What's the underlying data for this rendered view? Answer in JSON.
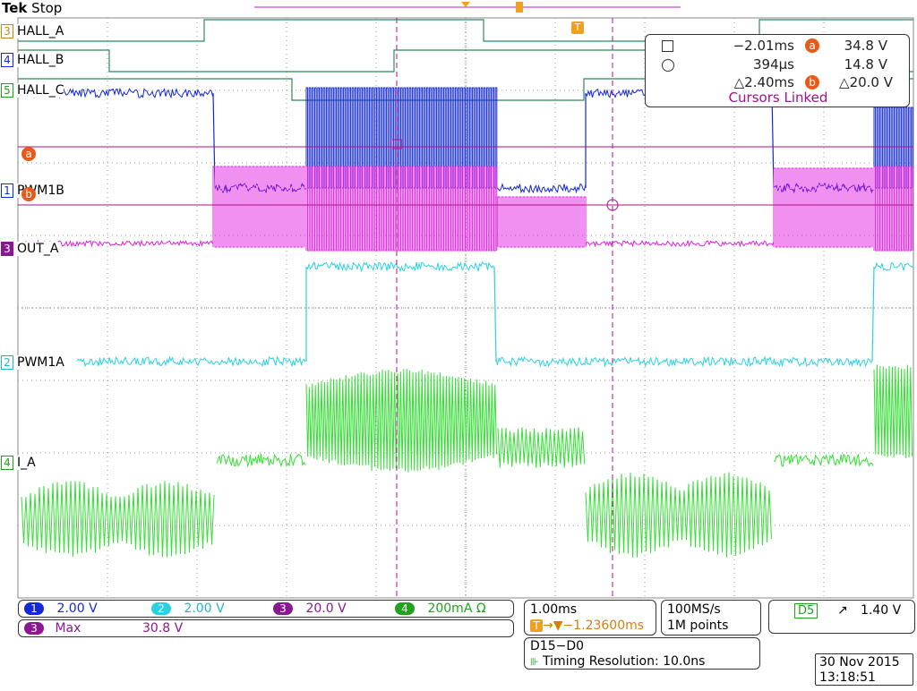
{
  "header": {
    "brand": "Tek",
    "run_state": "Stop"
  },
  "trigger_marker": "T",
  "channels": [
    {
      "tag": "3",
      "label": "HALL_A"
    },
    {
      "tag": "4",
      "label": "HALL_B"
    },
    {
      "tag": "5",
      "label": "HALL_C"
    },
    {
      "tag": "1",
      "label": "PWM1B"
    },
    {
      "tag": "3",
      "label": "OUT_A"
    },
    {
      "tag": "2",
      "label": "PWM1A"
    },
    {
      "tag": "4",
      "label": "I_A"
    }
  ],
  "cursor_markers": {
    "a": "a",
    "b": "b"
  },
  "cursor_readout": {
    "t1": "−2.01ms",
    "t2": "394µs",
    "dt": "△2.40ms",
    "va": "34.8 V",
    "vb": "14.8 V",
    "dv": "△20.0 V",
    "linked": "Cursors Linked"
  },
  "scales": [
    {
      "ch": "1",
      "value": "2.00 V",
      "color": "#1428d8"
    },
    {
      "ch": "2",
      "value": "2.00 V",
      "color": "#2ad2e0"
    },
    {
      "ch": "3",
      "value": "20.0 V",
      "color": "#b010b0"
    },
    {
      "ch": "4",
      "value": "200mA Ω",
      "color": "#22a020"
    }
  ],
  "measurement": {
    "ch": "3",
    "name": "Max",
    "value": "30.8 V"
  },
  "timebase": {
    "per_div": "1.00ms",
    "trigger_pos": "→▼−1.23600ms"
  },
  "acquisition": {
    "rate": "100MS/s",
    "points": "1M points"
  },
  "trigger": {
    "source": "D5",
    "slope": "↗",
    "level": "1.40 V"
  },
  "digital": {
    "group": "D15−D0",
    "resolution": "Timing Resolution: 10.0ns"
  },
  "datetime": {
    "date": "30 Nov 2015",
    "time": "13:18:51"
  },
  "colors": {
    "hall": "#2e8b57",
    "pwm1b": "#1428d8",
    "out_a": "#e020e0",
    "pwm1a": "#2ad2e0",
    "i_a": "#33e033",
    "cursor": "#b01080",
    "trigger": "#f0a020"
  }
}
